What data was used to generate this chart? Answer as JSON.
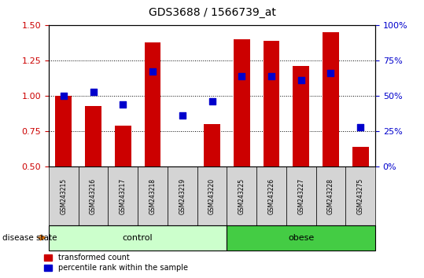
{
  "title": "GDS3688 / 1566739_at",
  "samples": [
    "GSM243215",
    "GSM243216",
    "GSM243217",
    "GSM243218",
    "GSM243219",
    "GSM243220",
    "GSM243225",
    "GSM243226",
    "GSM243227",
    "GSM243228",
    "GSM243275"
  ],
  "transformed_count": [
    1.0,
    0.93,
    0.79,
    1.38,
    0.5,
    0.8,
    1.4,
    1.39,
    1.21,
    1.45,
    0.64
  ],
  "percentile_rank_pct": [
    50,
    53,
    44,
    67,
    36,
    46,
    64,
    64,
    61,
    66,
    28
  ],
  "groups": [
    {
      "label": "control",
      "start": 0,
      "end": 6,
      "color": "#ccffcc"
    },
    {
      "label": "obese",
      "start": 6,
      "end": 11,
      "color": "#44cc44"
    }
  ],
  "ylim_left": [
    0.5,
    1.5
  ],
  "ylim_right": [
    0,
    100
  ],
  "yticks_left": [
    0.5,
    0.75,
    1.0,
    1.25,
    1.5
  ],
  "yticks_right": [
    0,
    25,
    50,
    75,
    100
  ],
  "bar_color": "#cc0000",
  "dot_color": "#0000cc",
  "bar_width": 0.55,
  "dot_size": 30,
  "left_tick_color": "#cc0000",
  "right_tick_color": "#0000cc",
  "legend_items": [
    {
      "label": "transformed count",
      "color": "#cc0000"
    },
    {
      "label": "percentile rank within the sample",
      "color": "#0000cc"
    }
  ],
  "disease_state_label": "disease state",
  "arrow_color": "#cc6600",
  "background": "#ffffff"
}
